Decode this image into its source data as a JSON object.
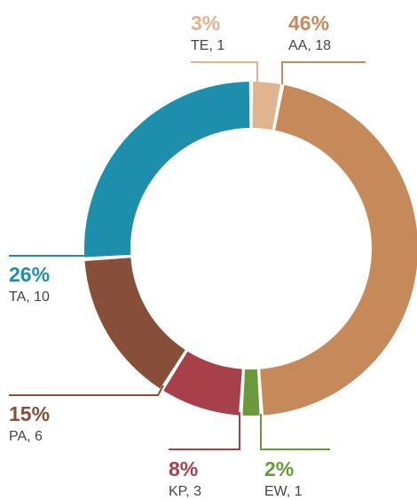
{
  "chart_data": {
    "type": "donut",
    "categories": [
      "TE",
      "AA",
      "EW",
      "KP",
      "PA",
      "TA"
    ],
    "values": [
      3,
      46,
      2,
      8,
      15,
      26
    ],
    "value_labels": [
      "3%",
      "46%",
      "2%",
      "8%",
      "15%",
      "26%"
    ],
    "labels": [
      "TE, 1",
      "AA, 18",
      "EW, 1",
      "KP, 3",
      "PA, 6",
      "TA, 10"
    ],
    "colors": [
      "#e0b48f",
      "#c68a5a",
      "#6a9a3c",
      "#a8404a",
      "#874f3a",
      "#1e8ead"
    ]
  }
}
